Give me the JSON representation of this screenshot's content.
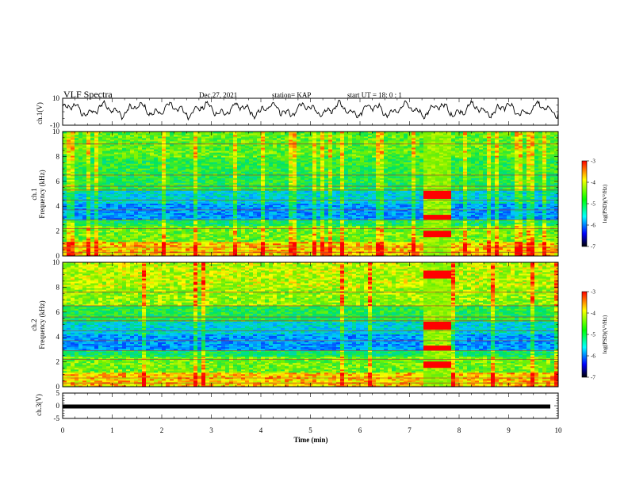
{
  "header": {
    "title": "VLF Spectra",
    "date": "Dec.27, 2021",
    "station": "station= KAP",
    "start_ut": "start  UT  =   18: 0   : 1"
  },
  "colorbar": {
    "label": "log(PSD)(V²/Hz)",
    "ticks": [
      "-3",
      "-4",
      "-5",
      "-6",
      "-7"
    ],
    "colors": [
      "#ff0000",
      "#ffff00",
      "#00ff00",
      "#00ffff",
      "#0000ff",
      "#000000"
    ]
  },
  "chart_data": [
    {
      "type": "line",
      "panel": "ch1-waveform",
      "ylabel": "ch.1(V)",
      "ylim": [
        -10,
        10
      ],
      "ytick_labels": [
        "10",
        "-10"
      ],
      "xlim": [
        0,
        10
      ],
      "description_series": "oscillating voltage roughly between -5 and 8"
    },
    {
      "type": "heatmap",
      "panel": "ch1-spectrogram",
      "ylabel": "ch.1\nFrequency (kHz)",
      "ylim": [
        0,
        10
      ],
      "ytick_labels": [
        "0",
        "2",
        "4",
        "6",
        "8",
        "10"
      ],
      "xlim": [
        0,
        10
      ],
      "colorbar_range": [
        -7,
        -3
      ],
      "event_window_min": [
        7.25,
        7.85
      ]
    },
    {
      "type": "heatmap",
      "panel": "ch2-spectrogram",
      "ylabel": "ch.2\nFrequency (kHz)",
      "ylim": [
        0,
        10
      ],
      "ytick_labels": [
        "0",
        "2",
        "4",
        "6",
        "8",
        "10"
      ],
      "xlim": [
        0,
        10
      ],
      "colorbar_range": [
        -7,
        -3
      ],
      "event_window_min": [
        7.25,
        7.85
      ]
    },
    {
      "type": "line",
      "panel": "ch3-waveform",
      "ylabel": "ch.3(V)",
      "ylim": [
        -5,
        5
      ],
      "ytick_labels": [
        "5",
        "0",
        "-5"
      ],
      "xlim": [
        0,
        10
      ],
      "xlabel": "Time  (min)",
      "xtick_labels": [
        "0",
        "1",
        "2",
        "3",
        "4",
        "5",
        "6",
        "7",
        "8",
        "9",
        "10"
      ],
      "constant_value": -0.3
    }
  ]
}
